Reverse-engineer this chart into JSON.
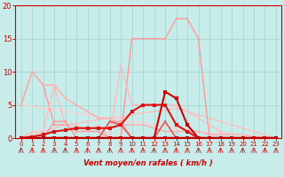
{
  "background_color": "#c8ecea",
  "grid_color": "#a0d0ce",
  "xlabel": "Vent moyen/en rafales ( km/h )",
  "xlim": [
    -0.5,
    23.5
  ],
  "ylim": [
    0,
    20
  ],
  "yticks": [
    0,
    5,
    10,
    15,
    20
  ],
  "xticks": [
    0,
    1,
    2,
    3,
    4,
    5,
    6,
    7,
    8,
    9,
    10,
    11,
    12,
    13,
    14,
    15,
    16,
    17,
    18,
    19,
    20,
    21,
    22,
    23
  ],
  "series": [
    {
      "x": [
        0,
        1,
        2,
        3,
        4,
        5,
        6,
        7,
        8,
        9,
        10,
        11,
        12,
        13,
        14,
        15,
        16,
        17,
        18,
        19,
        20,
        21,
        22,
        23
      ],
      "y": [
        5,
        10,
        8,
        2,
        2,
        1,
        1,
        1,
        0,
        0,
        15,
        15,
        15,
        15,
        18,
        18,
        15,
        0,
        0,
        0,
        0,
        0,
        0,
        0
      ],
      "color": "#ff9999",
      "lw": 1.0,
      "marker": "s",
      "ms": 2.0,
      "zorder": 3
    },
    {
      "x": [
        0,
        1,
        2,
        3,
        4,
        5,
        6,
        7,
        8,
        9,
        10,
        11,
        12,
        13,
        14,
        15,
        16,
        17,
        18,
        19,
        20,
        21,
        22,
        23
      ],
      "y": [
        5,
        10,
        8,
        8,
        6,
        5,
        4,
        3,
        3,
        2,
        2,
        2,
        1.5,
        1,
        1,
        1,
        1,
        0.5,
        0.5,
        0.5,
        0.5,
        0.2,
        0.1,
        0
      ],
      "color": "#ffaaaa",
      "lw": 1.0,
      "marker": "s",
      "ms": 2.0,
      "zorder": 3
    },
    {
      "x": [
        0,
        1,
        2,
        3,
        4,
        5,
        6,
        7,
        8,
        9,
        10,
        11,
        12,
        13,
        14,
        15,
        16,
        17,
        18,
        19,
        20,
        21,
        22,
        23
      ],
      "y": [
        0,
        1,
        1,
        8,
        2,
        2,
        1,
        2,
        0,
        11,
        5,
        5,
        5,
        5,
        5,
        4,
        3,
        2,
        1,
        0.5,
        0.5,
        0.2,
        0.1,
        0
      ],
      "color": "#ffbbbb",
      "lw": 1.0,
      "marker": "s",
      "ms": 2.0,
      "zorder": 3
    },
    {
      "x": [
        0,
        1,
        2,
        3,
        4,
        5,
        6,
        7,
        8,
        9,
        10,
        11,
        12,
        13,
        14,
        15,
        16,
        17,
        18,
        19,
        20,
        21,
        22,
        23
      ],
      "y": [
        5,
        4.8,
        4.5,
        4.3,
        4,
        3.8,
        3.5,
        3.2,
        3,
        2.8,
        2.5,
        2.3,
        2,
        1.8,
        1.5,
        1.3,
        1,
        0.8,
        0.7,
        0.6,
        0.5,
        0.3,
        0.2,
        0
      ],
      "color": "#ffcccc",
      "lw": 0.8,
      "marker": "s",
      "ms": 1.5,
      "zorder": 2
    },
    {
      "x": [
        0,
        1,
        2,
        3,
        4,
        5,
        6,
        7,
        8,
        9,
        10,
        11,
        12,
        13,
        14,
        15,
        16,
        17,
        18,
        19,
        20,
        21,
        22,
        23
      ],
      "y": [
        0,
        0.5,
        1,
        1.5,
        2,
        2.2,
        2.5,
        2.8,
        3,
        3.2,
        3.5,
        3.8,
        4,
        4.2,
        4.5,
        4,
        3.5,
        3,
        2.5,
        2,
        1.5,
        1,
        0.5,
        0
      ],
      "color": "#ffbbbb",
      "lw": 0.8,
      "marker": "s",
      "ms": 1.5,
      "zorder": 2
    },
    {
      "x": [
        0,
        1,
        2,
        3,
        4,
        5,
        6,
        7,
        8,
        9,
        10,
        11,
        12,
        13,
        14,
        15,
        16,
        17,
        18,
        19,
        20,
        21,
        22,
        23
      ],
      "y": [
        0,
        0,
        0,
        0,
        0,
        0,
        0,
        0,
        0,
        0,
        0,
        0,
        0,
        7,
        6,
        2,
        0,
        0,
        0,
        0,
        0,
        0,
        0,
        0
      ],
      "color": "#cc0000",
      "lw": 1.5,
      "marker": "s",
      "ms": 2.5,
      "zorder": 5
    },
    {
      "x": [
        0,
        1,
        2,
        3,
        4,
        5,
        6,
        7,
        8,
        9,
        10,
        11,
        12,
        13,
        14,
        15,
        16,
        17,
        18,
        19,
        20,
        21,
        22,
        23
      ],
      "y": [
        0,
        0.2,
        0.5,
        1,
        1.2,
        1.5,
        1.5,
        1.5,
        1.5,
        2,
        4,
        5,
        5,
        5,
        2,
        1,
        0,
        0,
        0,
        0,
        0,
        0,
        0,
        0
      ],
      "color": "#dd1111",
      "lw": 1.5,
      "marker": "s",
      "ms": 2.5,
      "zorder": 5
    },
    {
      "x": [
        0,
        1,
        2,
        3,
        4,
        5,
        6,
        7,
        8,
        9,
        10,
        11,
        12,
        13,
        14,
        15,
        16,
        17,
        18,
        19,
        20,
        21,
        22,
        23
      ],
      "y": [
        0,
        0,
        0,
        0,
        0,
        0,
        0,
        0,
        0,
        0,
        0,
        0,
        0,
        0,
        0,
        0,
        0,
        0,
        0,
        0,
        0,
        0,
        0,
        0
      ],
      "color": "#bb0000",
      "lw": 2.5,
      "marker": "s",
      "ms": 2.5,
      "zorder": 6
    },
    {
      "x": [
        0,
        1,
        2,
        3,
        4,
        5,
        6,
        7,
        8,
        9,
        10,
        11,
        12,
        13,
        14,
        15,
        16,
        17,
        18,
        19,
        20,
        21,
        22,
        23
      ],
      "y": [
        0,
        0,
        0,
        2.5,
        2.5,
        0,
        0,
        0,
        2.5,
        2.5,
        0,
        0,
        0,
        0,
        0,
        0,
        0,
        0,
        0,
        0,
        0,
        0,
        0,
        0
      ],
      "color": "#ff9999",
      "lw": 1.0,
      "marker": "s",
      "ms": 2.0,
      "zorder": 4
    },
    {
      "x": [
        0,
        1,
        2,
        3,
        4,
        5,
        6,
        7,
        8,
        9,
        10,
        11,
        12,
        13,
        14,
        15,
        16,
        17,
        18,
        19,
        20,
        21,
        22,
        23
      ],
      "y": [
        0,
        0,
        0,
        0,
        0,
        0,
        0,
        0,
        2.5,
        2,
        0,
        0,
        0,
        2.5,
        0,
        0,
        0,
        0,
        0,
        0,
        0,
        0,
        0,
        0
      ],
      "color": "#ee5555",
      "lw": 1.2,
      "marker": "s",
      "ms": 2.0,
      "zorder": 4
    }
  ]
}
